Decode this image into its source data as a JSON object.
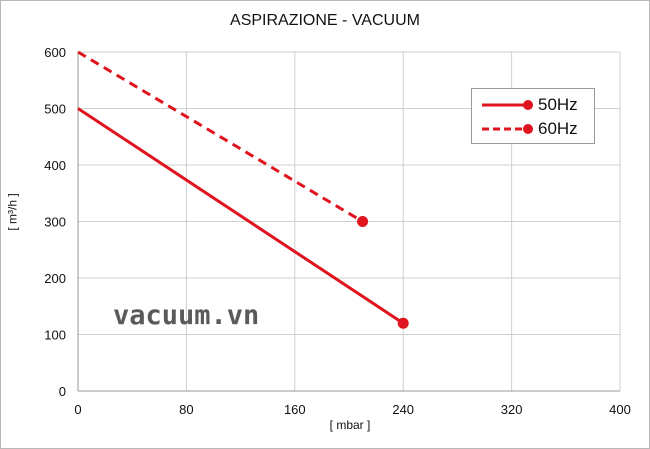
{
  "chart_data": {
    "type": "line",
    "title": "ASPIRAZIONE - VACUUM",
    "xlabel": "[ mbar ]",
    "ylabel": "[ m³/h ]",
    "xlim": [
      0,
      400
    ],
    "ylim": [
      0,
      600
    ],
    "xticks": [
      0,
      80,
      160,
      240,
      320,
      400
    ],
    "yticks": [
      0,
      100,
      200,
      300,
      400,
      500,
      600
    ],
    "grid": true,
    "legend_position": "top-right",
    "series": [
      {
        "name": "50Hz",
        "style": "solid",
        "color": "#e0141e",
        "x": [
          0,
          240
        ],
        "y": [
          500,
          120
        ]
      },
      {
        "name": "60Hz",
        "style": "dashed",
        "color": "#e0141e",
        "x": [
          0,
          210
        ],
        "y": [
          600,
          300
        ]
      }
    ]
  },
  "watermark": "vacuum.vn"
}
